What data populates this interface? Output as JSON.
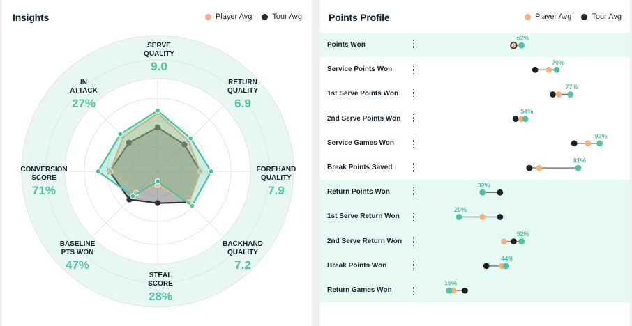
{
  "legend": {
    "player": "Player Avg",
    "tour": "Tour Avg",
    "player_color": "#f5b07d",
    "tour_color": "#262b2e",
    "accent_color": "#4cc4a0"
  },
  "insights": {
    "title": "Insights",
    "chart_data": {
      "type": "radar",
      "title": "Insights",
      "scale": [
        0,
        10
      ],
      "axes": [
        "SERVE QUALITY",
        "RETURN QUALITY",
        "FOREHAND QUALITY",
        "BACKHAND QUALITY",
        "STEAL SCORE",
        "BASELINE PTS WON",
        "CONVERSION SCORE",
        "IN ATTACK"
      ],
      "axis_labels": [
        {
          "line1": "SERVE",
          "line2": "QUALITY",
          "value": "9.0"
        },
        {
          "line1": "RETURN",
          "line2": "QUALITY",
          "value": "6.9"
        },
        {
          "line1": "FOREHAND",
          "line2": "QUALITY",
          "value": "7.9"
        },
        {
          "line1": "BACKHAND",
          "line2": "QUALITY",
          "value": "7.2"
        },
        {
          "line1": "STEAL",
          "line2": "SCORE",
          "value": "28%"
        },
        {
          "line1": "BASELINE",
          "line2": "PTS WON",
          "value": "47%"
        },
        {
          "line1": "CONVERSION",
          "line2": "SCORE",
          "value": "71%"
        },
        {
          "line1": "IN",
          "line2": "ATTACK",
          "value": "27%"
        }
      ],
      "series": [
        {
          "name": "Player",
          "values": [
            9.0,
            6.9,
            7.9,
            7.2,
            1.5,
            5.2,
            8.8,
            7.8
          ]
        },
        {
          "name": "Player Avg",
          "values": [
            8.6,
            6.4,
            6.3,
            6.5,
            2.0,
            4.5,
            7.0,
            7.2
          ]
        },
        {
          "name": "Tour Avg",
          "values": [
            6.5,
            5.6,
            6.3,
            6.5,
            4.7,
            5.9,
            7.1,
            6.0
          ]
        }
      ]
    }
  },
  "profile": {
    "title": "Points Profile",
    "chart_data": {
      "type": "dumbbell",
      "title": "Points Profile",
      "unit": "%",
      "rows": [
        {
          "label": "Points Won",
          "player": 52,
          "player_avg": 48,
          "tour": 48,
          "value_label": "52%",
          "group": "total"
        },
        {
          "label": "Service Points Won",
          "player": 70,
          "player_avg": 66,
          "tour": 59,
          "value_label": "70%",
          "group": "serve"
        },
        {
          "label": "1st Serve Points Won",
          "player": 77,
          "player_avg": 71,
          "tour": 68,
          "value_label": "77%",
          "group": "serve"
        },
        {
          "label": "2nd Serve Points Won",
          "player": 54,
          "player_avg": 52,
          "tour": 49,
          "value_label": "54%",
          "group": "serve"
        },
        {
          "label": "Service Games Won",
          "player": 92,
          "player_avg": 86,
          "tour": 79,
          "value_label": "92%",
          "group": "serve"
        },
        {
          "label": "Break Points Saved",
          "player": 81,
          "player_avg": 61,
          "tour": 56,
          "value_label": "81%",
          "group": "serve"
        },
        {
          "label": "Return Points Won",
          "player": 32,
          "player_avg": 32,
          "tour": 41,
          "value_label": "32%",
          "group": "return"
        },
        {
          "label": "1st Serve Return Won",
          "player": 20,
          "player_avg": 32,
          "tour": 41,
          "value_label": "20%",
          "group": "return"
        },
        {
          "label": "2nd Serve Return Won",
          "player": 52,
          "player_avg": 43,
          "tour": 48,
          "value_label": "52%",
          "group": "return"
        },
        {
          "label": "Break Points Won",
          "player": 44,
          "player_avg": 42,
          "tour": 34,
          "value_label": "44%",
          "group": "return"
        },
        {
          "label": "Return Games Won",
          "player": 15,
          "player_avg": 17,
          "tour": 23,
          "value_label": "15%",
          "group": "return"
        }
      ]
    }
  }
}
